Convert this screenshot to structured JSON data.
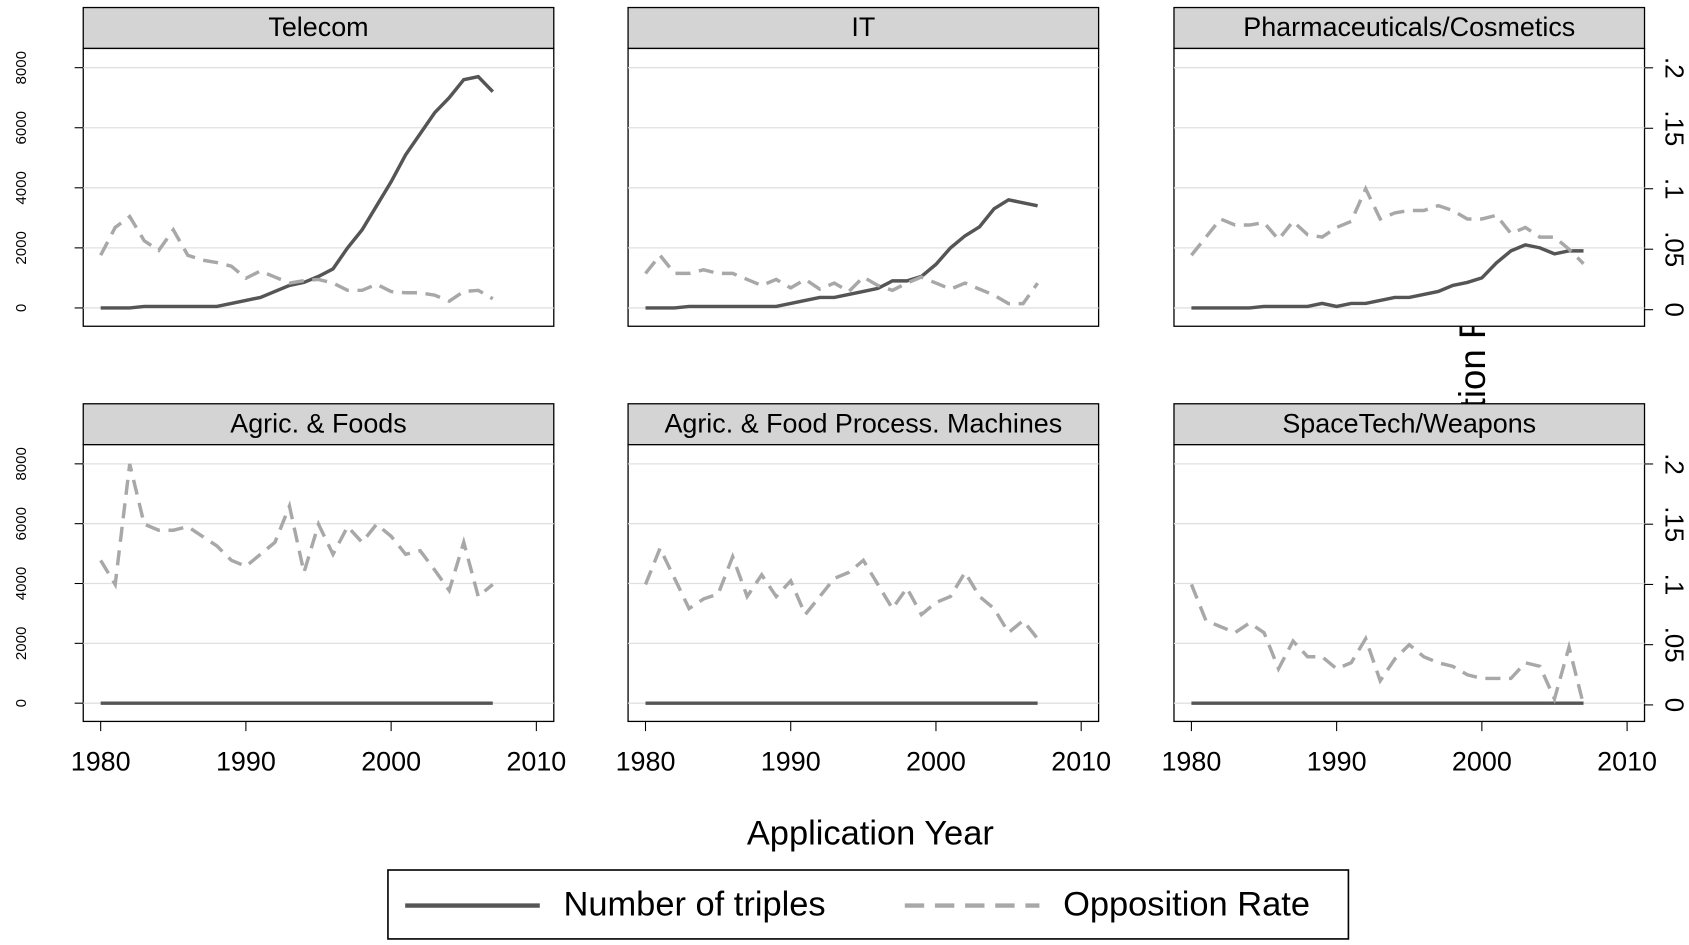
{
  "chart_data": {
    "type": "line",
    "xlabel": "Application Year",
    "y2label": "Opposition Rate",
    "grid": true,
    "legend": [
      {
        "name": "Number of triples",
        "color": "#555555",
        "dash": "solid"
      },
      {
        "name": "Opposition Rate",
        "color": "#a8a8a8",
        "dash": "dashed"
      }
    ],
    "x": [
      1980,
      1981,
      1982,
      1983,
      1984,
      1985,
      1986,
      1987,
      1988,
      1989,
      1990,
      1991,
      1992,
      1993,
      1994,
      1995,
      1996,
      1997,
      1998,
      1999,
      2000,
      2001,
      2002,
      2003,
      2004,
      2005,
      2006,
      2007
    ],
    "xlim": [
      1978.8,
      2011.2
    ],
    "xticks": [
      1980,
      1990,
      2000,
      2010
    ],
    "ylim": [
      -610,
      8640
    ],
    "yticks": [
      0,
      2000,
      4000,
      6000,
      8000
    ],
    "y2lim": [
      -0.0137,
      0.216
    ],
    "y2ticks": [
      0,
      {
        "value": 0.05,
        "label": ".05"
      },
      {
        "value": 0.1,
        "label": ".1"
      },
      {
        "value": 0.15,
        "label": ".15"
      },
      {
        "value": 0.2,
        "label": ".2"
      }
    ],
    "panels": [
      {
        "title": "Telecom",
        "series": [
          {
            "values": [
              0,
              0,
              0,
              50,
              50,
              50,
              50,
              50,
              50,
              150,
              250,
              350,
              550,
              750,
              850,
              1050,
              1300,
              2000,
              2600,
              3400,
              4200,
              5100,
              5800,
              6500,
              7000,
              7600,
              7700,
              7200
            ]
          },
          {
            "axis": "y2",
            "values": [
              0.045,
              0.068,
              0.077,
              0.057,
              0.049,
              0.066,
              0.045,
              0.041,
              0.039,
              0.036,
              0.026,
              0.032,
              0.027,
              0.022,
              0.024,
              0.025,
              0.022,
              0.016,
              0.016,
              0.021,
              0.015,
              0.014,
              0.014,
              0.012,
              0.007,
              0.015,
              0.016,
              0.009
            ]
          }
        ]
      },
      {
        "title": "IT",
        "series": [
          {
            "values": [
              0,
              0,
              0,
              50,
              50,
              50,
              50,
              50,
              50,
              50,
              150,
              250,
              350,
              350,
              450,
              550,
              650,
              900,
              900,
              1050,
              1450,
              2000,
              2400,
              2700,
              3300,
              3600,
              3500,
              3400
            ]
          },
          {
            "axis": "y2",
            "values": [
              0.03,
              0.045,
              0.03,
              0.03,
              0.033,
              0.03,
              0.03,
              0.025,
              0.02,
              0.025,
              0.018,
              0.025,
              0.017,
              0.022,
              0.015,
              0.027,
              0.02,
              0.016,
              0.022,
              0.027,
              0.022,
              0.017,
              0.022,
              0.017,
              0.012,
              0.005,
              0.005,
              0.022
            ]
          }
        ]
      },
      {
        "title": "Pharmaceuticals/Cosmetics",
        "series": [
          {
            "values": [
              0,
              0,
              0,
              0,
              0,
              50,
              50,
              50,
              50,
              150,
              50,
              150,
              150,
              250,
              350,
              350,
              450,
              550,
              750,
              850,
              1000,
              1500,
              1900,
              2100,
              2000,
              1800,
              1900,
              1900
            ]
          },
          {
            "axis": "y2",
            "values": [
              0.045,
              0.06,
              0.075,
              0.07,
              0.07,
              0.072,
              0.058,
              0.073,
              0.062,
              0.06,
              0.068,
              0.073,
              0.1,
              0.075,
              0.08,
              0.082,
              0.082,
              0.086,
              0.082,
              0.075,
              0.075,
              0.078,
              0.063,
              0.068,
              0.06,
              0.06,
              0.05,
              0.038
            ]
          }
        ]
      },
      {
        "title": "Agric. & Foods",
        "series": [
          {
            "values": [
              0,
              0,
              0,
              0,
              0,
              0,
              0,
              0,
              0,
              0,
              0,
              0,
              0,
              0,
              0,
              0,
              0,
              0,
              0,
              0,
              0,
              0,
              0,
              0,
              0,
              0,
              0,
              0
            ]
          },
          {
            "axis": "y2",
            "values": [
              0.12,
              0.1,
              0.2,
              0.15,
              0.145,
              0.145,
              0.148,
              0.14,
              0.132,
              0.12,
              0.115,
              0.125,
              0.135,
              0.165,
              0.11,
              0.15,
              0.125,
              0.148,
              0.135,
              0.15,
              0.14,
              0.125,
              0.128,
              0.112,
              0.095,
              0.135,
              0.09,
              0.1
            ]
          }
        ]
      },
      {
        "title": "Agric. & Food Process. Machines",
        "series": [
          {
            "values": [
              0,
              0,
              0,
              0,
              0,
              0,
              0,
              0,
              0,
              0,
              0,
              0,
              0,
              0,
              0,
              0,
              0,
              0,
              0,
              0,
              0,
              0,
              0,
              0,
              0,
              0,
              0,
              0
            ]
          },
          {
            "axis": "y2",
            "values": [
              0.1,
              0.13,
              0.105,
              0.08,
              0.088,
              0.092,
              0.123,
              0.09,
              0.108,
              0.09,
              0.103,
              0.075,
              0.09,
              0.105,
              0.11,
              0.12,
              0.1,
              0.08,
              0.097,
              0.075,
              0.085,
              0.09,
              0.11,
              0.09,
              0.08,
              0.06,
              0.07,
              0.055
            ]
          }
        ]
      },
      {
        "title": "SpaceTech/Weapons",
        "series": [
          {
            "values": [
              0,
              0,
              0,
              0,
              0,
              0,
              0,
              0,
              0,
              0,
              0,
              0,
              0,
              0,
              0,
              0,
              0,
              0,
              0,
              0,
              0,
              0,
              0,
              0,
              0,
              0,
              0,
              0
            ]
          },
          {
            "axis": "y2",
            "values": [
              0.1,
              0.07,
              0.065,
              0.06,
              0.068,
              0.06,
              0.03,
              0.053,
              0.04,
              0.04,
              0.03,
              0.035,
              0.055,
              0.02,
              0.038,
              0.05,
              0.04,
              0.035,
              0.032,
              0.025,
              0.022,
              0.022,
              0.022,
              0.035,
              0.032,
              0.005,
              0.048,
              0
            ]
          }
        ]
      }
    ]
  }
}
